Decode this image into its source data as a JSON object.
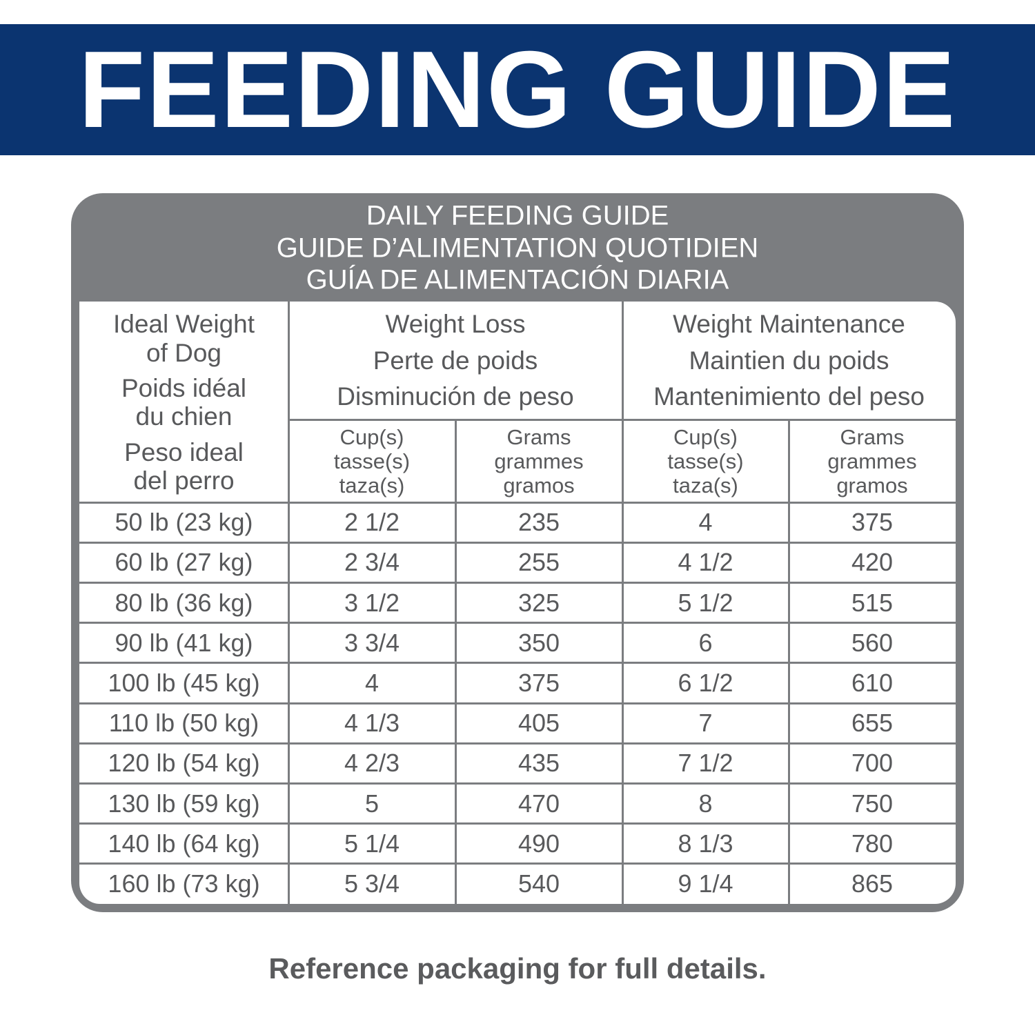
{
  "header": {
    "title": "FEEDING GUIDE"
  },
  "table": {
    "title": [
      "DAILY FEEDING GUIDE",
      "GUIDE D’ALIMENTATION QUOTIDIEN",
      "GUÍA DE ALIMENTACIÓN DIARIA"
    ],
    "weight_header": [
      "Ideal Weight",
      "of Dog",
      "Poids idéal",
      "du chien",
      "Peso ideal",
      "del perro"
    ],
    "column_groups": [
      [
        "Weight Loss",
        "Perte de poids",
        "Disminución de peso"
      ],
      [
        "Weight Maintenance",
        "Maintien du poids",
        "Mantenimiento del peso"
      ]
    ],
    "subheaders": [
      [
        "Cup(s)",
        "tasse(s)",
        "taza(s)"
      ],
      [
        "Grams",
        "grammes",
        "gramos"
      ],
      [
        "Cup(s)",
        "tasse(s)",
        "taza(s)"
      ],
      [
        "Grams",
        "grammes",
        "gramos"
      ]
    ],
    "rows": [
      [
        "50 lb (23 kg)",
        "2 1/2",
        "235",
        "4",
        "375"
      ],
      [
        "60 lb (27 kg)",
        "2 3/4",
        "255",
        "4 1/2",
        "420"
      ],
      [
        "80 lb (36 kg)",
        "3 1/2",
        "325",
        "5 1/2",
        "515"
      ],
      [
        "90 lb (41 kg)",
        "3 3/4",
        "350",
        "6",
        "560"
      ],
      [
        "100 lb (45 kg)",
        "4",
        "375",
        "6 1/2",
        "610"
      ],
      [
        "110 lb (50 kg)",
        "4 1/3",
        "405",
        "7",
        "655"
      ],
      [
        "120 lb (54 kg)",
        "4 2/3",
        "435",
        "7 1/2",
        "700"
      ],
      [
        "130 lb (59 kg)",
        "5",
        "470",
        "8",
        "750"
      ],
      [
        "140 lb (64 kg)",
        "5 1/4",
        "490",
        "8 1/3",
        "780"
      ],
      [
        "160 lb (73 kg)",
        "5 3/4",
        "540",
        "9 1/4",
        "865"
      ]
    ]
  },
  "footer": {
    "note": "Reference packaging for full details."
  }
}
